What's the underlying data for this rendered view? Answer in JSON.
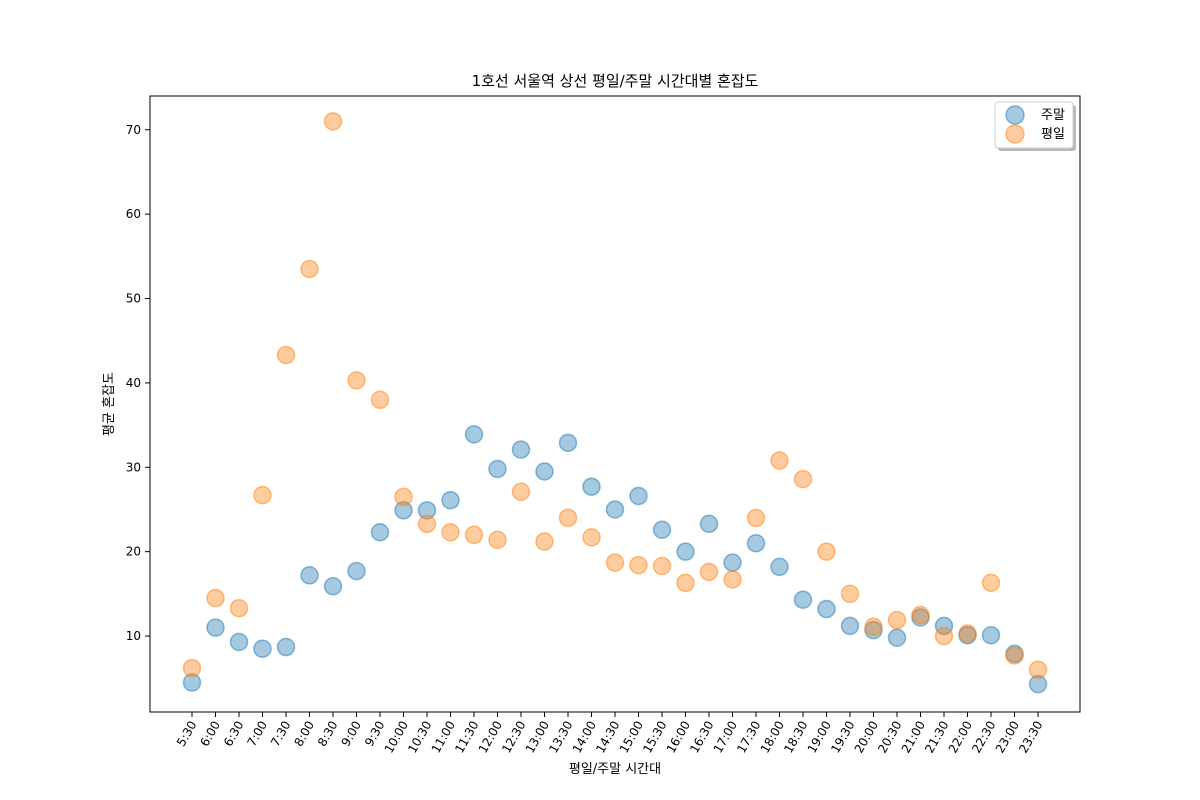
{
  "chart_data": {
    "type": "scatter",
    "title": "1호선 서울역 상선 평일/주말 시간대별 혼잡도",
    "xlabel": "평일/주말 시간대",
    "ylabel": "평균 혼잡도",
    "categories": [
      "5:30",
      "6:00",
      "6:30",
      "7:00",
      "7:30",
      "8:00",
      "8:30",
      "9:00",
      "9:30",
      "10:00",
      "10:30",
      "11:00",
      "11:30",
      "12:00",
      "12:30",
      "13:00",
      "13:30",
      "14:00",
      "14:30",
      "15:00",
      "15:30",
      "16:00",
      "16:30",
      "17:00",
      "17:30",
      "18:00",
      "18:30",
      "19:00",
      "19:30",
      "20:00",
      "20:30",
      "21:00",
      "21:30",
      "22:00",
      "22:30",
      "23:00",
      "23:30"
    ],
    "ylim": [
      1,
      74
    ],
    "yticks": [
      10,
      20,
      30,
      40,
      50,
      60,
      70
    ],
    "grid": false,
    "legend_position": "top-right",
    "series": [
      {
        "name": "주말",
        "color": "#1f77b4",
        "values": [
          4.5,
          11.0,
          9.3,
          8.5,
          8.7,
          17.2,
          15.9,
          17.7,
          22.3,
          24.9,
          24.9,
          26.1,
          33.9,
          29.8,
          32.1,
          29.5,
          32.9,
          27.7,
          25.0,
          26.6,
          22.6,
          20.0,
          23.3,
          18.7,
          21.0,
          18.2,
          14.3,
          13.2,
          11.2,
          10.7,
          9.8,
          12.2,
          11.2,
          10.1,
          10.1,
          7.9,
          4.3
        ]
      },
      {
        "name": "평일",
        "color": "#ff7f0e",
        "values": [
          6.2,
          14.5,
          13.3,
          26.7,
          43.3,
          53.5,
          71.0,
          40.3,
          38.0,
          26.5,
          23.3,
          22.3,
          22.0,
          21.4,
          27.1,
          21.2,
          24.0,
          21.7,
          18.7,
          18.4,
          18.3,
          16.3,
          17.6,
          16.7,
          24.0,
          30.8,
          28.6,
          20.0,
          15.0,
          11.1,
          11.9,
          12.5,
          10.0,
          10.3,
          16.3,
          7.7,
          6.0
        ]
      }
    ]
  }
}
